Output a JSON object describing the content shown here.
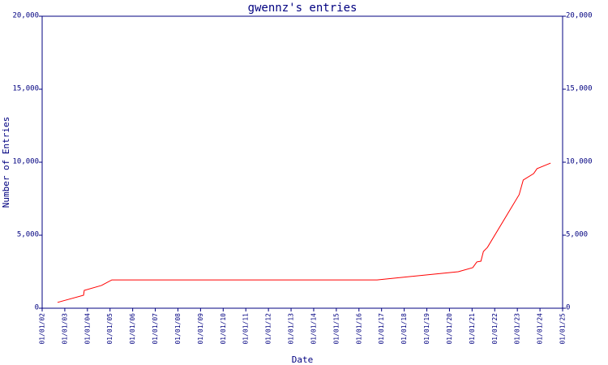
{
  "chart_data": {
    "type": "line",
    "title": "gwennz's entries",
    "x_label": "Date",
    "y_label": "Number of Entries",
    "series": [
      {
        "name": "entries",
        "color": "#ff0000",
        "x": [
          2002.68,
          2003.83,
          2003.86,
          2004.62,
          2005.08,
          2016.8,
          2020.39,
          2021.03,
          2021.21,
          2021.39,
          2021.5,
          2021.68,
          2023.08,
          2023.26,
          2023.72,
          2023.87,
          2024.47
        ],
        "values": [
          400,
          890,
          1220,
          1560,
          1940,
          1940,
          2500,
          2780,
          3170,
          3220,
          3890,
          4170,
          7780,
          8780,
          9220,
          9560,
          9940
        ]
      }
    ],
    "xlim": [
      2002,
      2025
    ],
    "xticks": [
      {
        "value": 2002,
        "label": "01/01/02"
      },
      {
        "value": 2003,
        "label": "01/01/03"
      },
      {
        "value": 2004,
        "label": "01/01/04"
      },
      {
        "value": 2005,
        "label": "01/01/05"
      },
      {
        "value": 2006,
        "label": "01/01/06"
      },
      {
        "value": 2007,
        "label": "01/01/07"
      },
      {
        "value": 2008,
        "label": "01/01/08"
      },
      {
        "value": 2009,
        "label": "01/01/09"
      },
      {
        "value": 2010,
        "label": "01/01/10"
      },
      {
        "value": 2011,
        "label": "01/01/11"
      },
      {
        "value": 2012,
        "label": "01/01/12"
      },
      {
        "value": 2013,
        "label": "01/01/13"
      },
      {
        "value": 2014,
        "label": "01/01/14"
      },
      {
        "value": 2015,
        "label": "01/01/15"
      },
      {
        "value": 2016,
        "label": "01/01/16"
      },
      {
        "value": 2017,
        "label": "01/01/17"
      },
      {
        "value": 2018,
        "label": "01/01/18"
      },
      {
        "value": 2019,
        "label": "01/01/19"
      },
      {
        "value": 2020,
        "label": "01/01/20"
      },
      {
        "value": 2021,
        "label": "01/01/21"
      },
      {
        "value": 2022,
        "label": "01/01/22"
      },
      {
        "value": 2023,
        "label": "01/01/23"
      },
      {
        "value": 2024,
        "label": "01/01/24"
      },
      {
        "value": 2025,
        "label": "01/01/25"
      }
    ],
    "ylim": [
      0,
      20000
    ],
    "yticks": [
      0,
      {
        "value": 5000,
        "label": "5,000"
      },
      {
        "value": 10000,
        "label": "10,000"
      },
      {
        "value": 15000,
        "label": "15,000"
      },
      {
        "value": 20000,
        "label": "20,000"
      }
    ],
    "right_axis": true
  }
}
